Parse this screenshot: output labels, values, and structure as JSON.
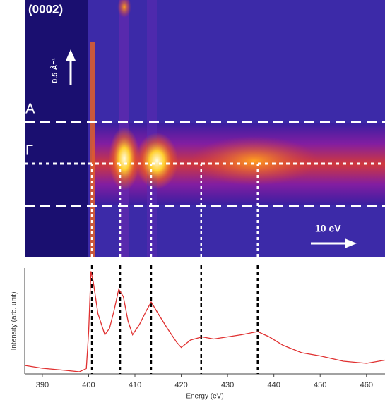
{
  "chart_data": {
    "type": "line",
    "image_labels": [
      "(0002)",
      "0.5 Å⁻¹",
      "A",
      "Γ",
      "10 eV"
    ],
    "xlabel": "Energy (eV)",
    "ylabel": "Intensity (arb. unit)",
    "x": [
      386.2,
      390,
      395,
      398,
      399.5,
      400,
      400.5,
      401,
      402,
      403.5,
      404.5,
      405.5,
      406.5,
      407.5,
      408.5,
      409.5,
      411,
      412.5,
      413.5,
      415,
      417,
      419,
      420,
      422,
      424.5,
      427,
      430,
      433,
      436.5,
      439,
      442,
      446,
      450,
      455,
      460,
      464
    ],
    "series": [
      {
        "color": "#e03030",
        "values": [
          0.08,
          0.053,
          0.033,
          0.02,
          0.05,
          0.4,
          0.97,
          0.87,
          0.57,
          0.37,
          0.43,
          0.6,
          0.8,
          0.73,
          0.5,
          0.37,
          0.47,
          0.6,
          0.68,
          0.57,
          0.43,
          0.3,
          0.25,
          0.32,
          0.35,
          0.33,
          0.35,
          0.37,
          0.4,
          0.35,
          0.27,
          0.2,
          0.17,
          0.12,
          0.1,
          0.13
        ]
      }
    ],
    "vlines": [
      400.7,
      406.8,
      413.5,
      424.3,
      436.5
    ],
    "xlim": [
      386.2,
      464
    ],
    "ylim": [
      0,
      1.0
    ],
    "xticks": [
      390,
      400,
      410,
      420,
      430,
      440,
      450,
      460
    ]
  }
}
